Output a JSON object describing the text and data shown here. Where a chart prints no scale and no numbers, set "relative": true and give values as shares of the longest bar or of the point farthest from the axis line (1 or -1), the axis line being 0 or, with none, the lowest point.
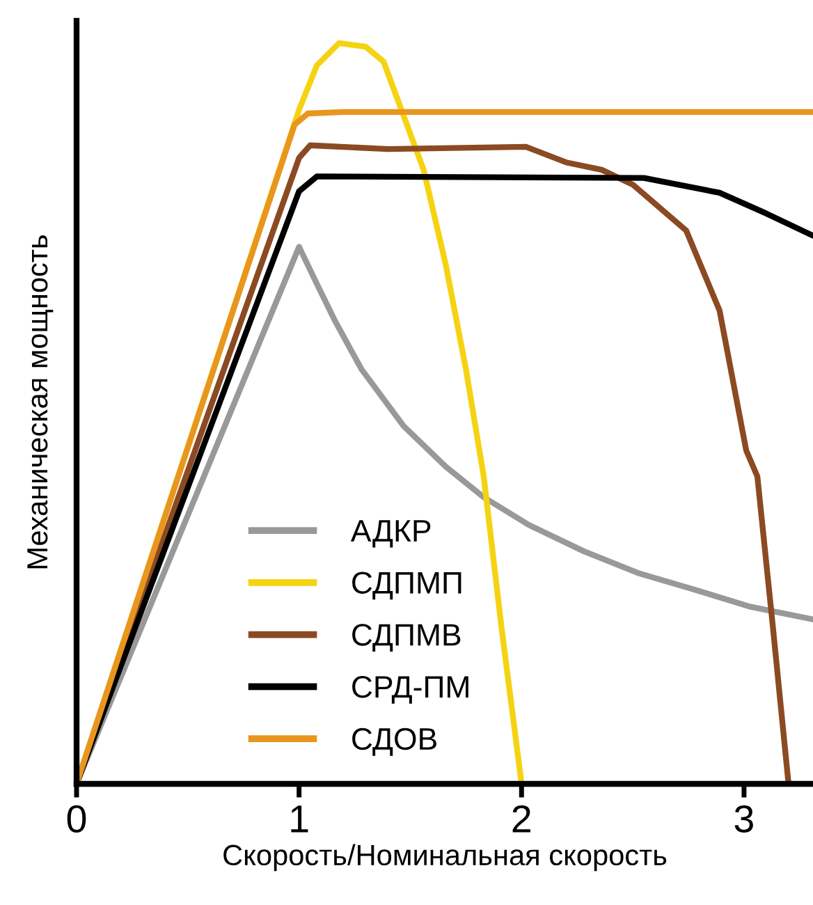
{
  "chart_data": {
    "type": "line",
    "xlabel": "Скорость/Номинальная скорость",
    "ylabel": "Механическая мощность",
    "relative": true,
    "xlim": [
      0,
      3.31
    ],
    "xticks": [
      0,
      1,
      2,
      3
    ],
    "grid": false,
    "legend": "bottom left",
    "marker": "none",
    "line_style": "solid",
    "series": [
      {
        "name": "АДКР",
        "color": "#999999",
        "x": [
          0,
          1.0,
          1.08,
          1.16,
          1.28,
          1.47,
          1.66,
          1.83,
          2.03,
          2.28,
          2.53,
          2.78,
          3.03,
          3.31
        ],
        "values": [
          0,
          0.725,
          0.675,
          0.626,
          0.56,
          0.483,
          0.428,
          0.387,
          0.35,
          0.314,
          0.284,
          0.262,
          0.239,
          0.222
        ]
      },
      {
        "name": "СДПМП",
        "color": "#f5d312",
        "x": [
          0,
          1.0,
          1.08,
          1.18,
          1.3,
          1.38,
          1.46,
          1.56,
          1.66,
          1.75,
          1.83,
          1.91,
          2.0
        ],
        "values": [
          0,
          0.91,
          0.97,
          1.0,
          0.995,
          0.975,
          0.91,
          0.829,
          0.7,
          0.56,
          0.415,
          0.211,
          0
        ]
      },
      {
        "name": "СДПМВ",
        "color": "#8b4a22",
        "x": [
          0,
          1.0,
          1.05,
          1.4,
          2.02,
          2.2,
          2.36,
          2.5,
          2.74,
          2.89,
          3.01,
          3.06,
          3.13,
          3.2
        ],
        "values": [
          0,
          0.845,
          0.862,
          0.857,
          0.86,
          0.839,
          0.829,
          0.809,
          0.747,
          0.639,
          0.45,
          0.415,
          0.211,
          0
        ]
      },
      {
        "name": "СРД-ПМ",
        "color": "#000000",
        "x": [
          0,
          1.0,
          1.08,
          2.55,
          2.89,
          3.1,
          3.31
        ],
        "values": [
          0,
          0.8,
          0.82,
          0.818,
          0.798,
          0.77,
          0.74
        ]
      },
      {
        "name": "СДОВ",
        "color": "#e8961e",
        "x": [
          0,
          0.98,
          1.04,
          1.2,
          3.31
        ],
        "values": [
          0,
          0.89,
          0.905,
          0.907,
          0.907
        ]
      }
    ]
  }
}
